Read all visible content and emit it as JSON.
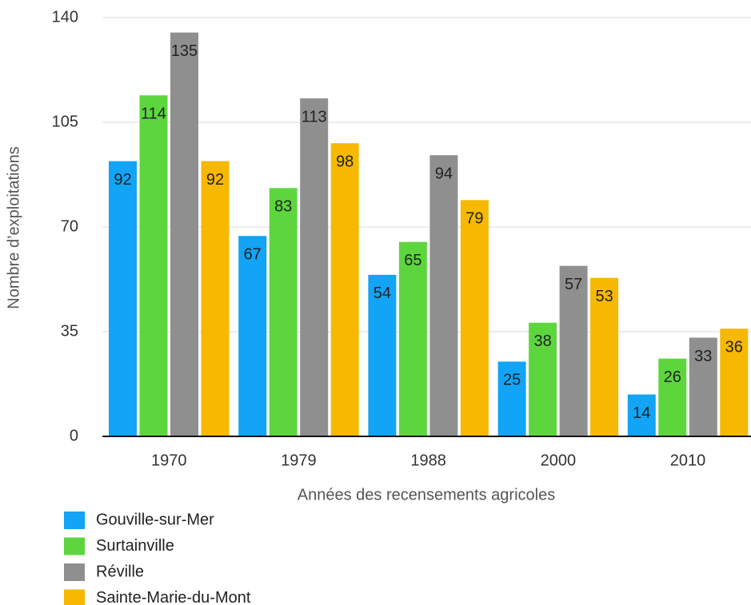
{
  "chart_data": {
    "type": "bar",
    "y_label": "Nombre d’exploitations",
    "x_label": "Années des recensements agricoles",
    "categories": [
      "1970",
      "1979",
      "1988",
      "2000",
      "2010"
    ],
    "series": [
      {
        "name": "Gouville-sur-Mer",
        "color": "#12a4f6",
        "values": [
          92,
          67,
          54,
          25,
          14
        ]
      },
      {
        "name": "Surtainville",
        "color": "#5dd63e",
        "values": [
          114,
          83,
          65,
          38,
          26
        ]
      },
      {
        "name": "Réville",
        "color": "#8f8f8f",
        "values": [
          135,
          113,
          94,
          57,
          33
        ]
      },
      {
        "name": "Sainte-Marie-du-Mont",
        "color": "#f6b800",
        "values": [
          92,
          98,
          79,
          53,
          36
        ]
      }
    ],
    "ylim": [
      0,
      140
    ],
    "yticks": [
      0,
      35,
      70,
      105,
      140
    ],
    "grid": true,
    "legend": "bottom-left"
  }
}
